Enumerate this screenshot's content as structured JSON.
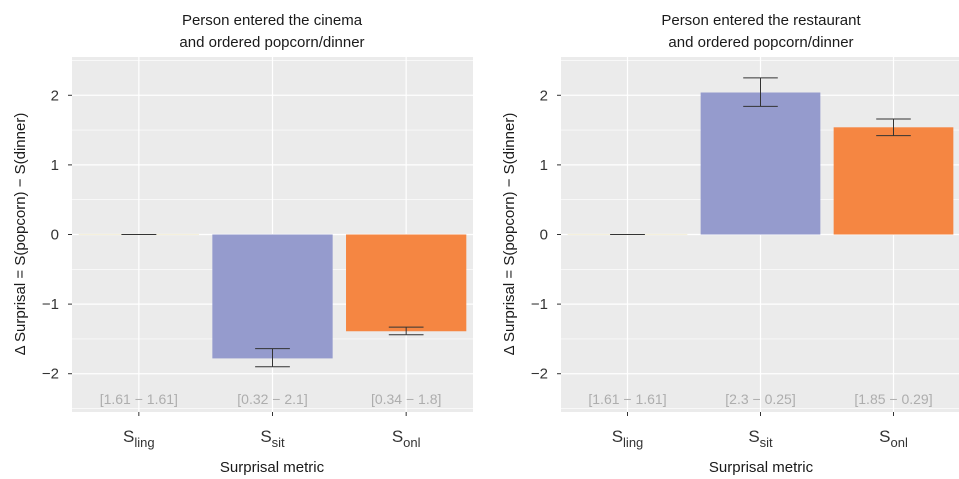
{
  "colors": {
    "panel_background": "#ebebeb",
    "grid": "#ffffff",
    "S_ling": "#f5f0dc",
    "S_sit": "#959bcd",
    "S_onl": "#f58642",
    "errorbar": "#333333",
    "interval_text": "#adadad"
  },
  "shared": {
    "ylabel": "Δ Surprisal = S(popcorn) − S(dinner)",
    "xlabel": "Surprisal metric",
    "y_ticks": [
      2,
      1,
      0,
      -1,
      -2
    ],
    "y_tick_labels": [
      "2",
      "1",
      "0",
      "−1",
      "−2"
    ],
    "category_labels": [
      {
        "base": "S",
        "sub": "ling"
      },
      {
        "base": "S",
        "sub": "sit"
      },
      {
        "base": "S",
        "sub": "onl"
      }
    ]
  },
  "chart_data": [
    {
      "type": "bar",
      "title_line1": "Person entered the cinema",
      "title_line2": "and ordered popcorn/dinner",
      "xlabel": "Surprisal metric",
      "ylabel": "Δ Surprisal = S(popcorn) − S(dinner)",
      "categories": [
        "S_ling",
        "S_sit",
        "S_onl"
      ],
      "values": [
        0,
        -1.78,
        -1.39
      ],
      "error_low": [
        0,
        -1.9,
        -1.44
      ],
      "error_high": [
        0,
        -1.64,
        -1.33
      ],
      "interval_labels": [
        "[1.61 − 1.61]",
        "[0.32 − 2.1]",
        "[0.34 − 1.8]"
      ],
      "ylim": [
        -2.55,
        2.55
      ],
      "grid": true
    },
    {
      "type": "bar",
      "title_line1": "Person entered the restaurant",
      "title_line2": "and ordered popcorn/dinner",
      "xlabel": "Surprisal metric",
      "ylabel": "Δ Surprisal = S(popcorn) − S(dinner)",
      "categories": [
        "S_ling",
        "S_sit",
        "S_onl"
      ],
      "values": [
        0,
        2.04,
        1.54
      ],
      "error_low": [
        0,
        1.84,
        1.42
      ],
      "error_high": [
        0,
        2.25,
        1.66
      ],
      "interval_labels": [
        "[1.61 − 1.61]",
        "[2.3 − 0.25]",
        "[1.85 − 0.29]"
      ],
      "ylim": [
        -2.55,
        2.55
      ],
      "grid": true
    }
  ]
}
